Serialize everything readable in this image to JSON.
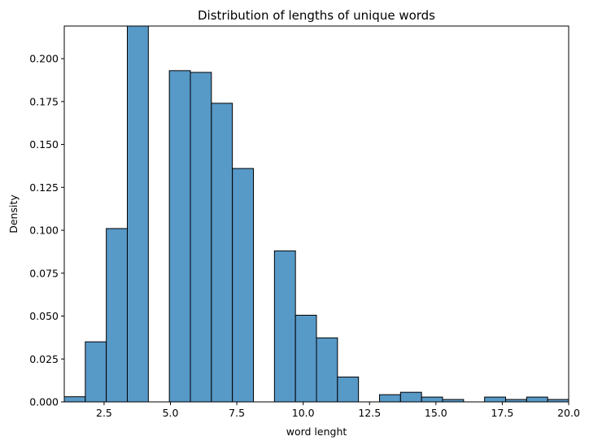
{
  "chart_data": {
    "type": "bar",
    "title": "Distribution of lengths of unique words",
    "xlabel": "word lenght",
    "ylabel": "Density",
    "xlim": [
      1,
      20
    ],
    "ylim": [
      0,
      0.219
    ],
    "grid": false,
    "legend": "none",
    "bar_color": "#5799c7",
    "edge_color": "#000000",
    "x_ticks": [
      2.5,
      5.0,
      7.5,
      10.0,
      12.5,
      15.0,
      17.5,
      20.0
    ],
    "x_tick_labels": [
      "2.5",
      "5.0",
      "7.5",
      "10.0",
      "12.5",
      "15.0",
      "17.5",
      "20.0"
    ],
    "y_ticks": [
      0.0,
      0.025,
      0.05,
      0.075,
      0.1,
      0.125,
      0.15,
      0.175,
      0.2
    ],
    "y_tick_labels": [
      "0.000",
      "0.025",
      "0.050",
      "0.075",
      "0.100",
      "0.125",
      "0.150",
      "0.175",
      "0.200"
    ],
    "bins": [
      {
        "x0": 1.0,
        "x1": 1.792,
        "value": 0.003
      },
      {
        "x0": 1.792,
        "x1": 2.583,
        "value": 0.035
      },
      {
        "x0": 2.583,
        "x1": 3.375,
        "value": 0.101
      },
      {
        "x0": 3.375,
        "x1": 4.167,
        "value": 0.219
      },
      {
        "x0": 4.167,
        "x1": 4.958,
        "value": 0.0
      },
      {
        "x0": 4.958,
        "x1": 5.75,
        "value": 0.193
      },
      {
        "x0": 5.75,
        "x1": 6.542,
        "value": 0.192
      },
      {
        "x0": 6.542,
        "x1": 7.333,
        "value": 0.174
      },
      {
        "x0": 7.333,
        "x1": 8.125,
        "value": 0.136
      },
      {
        "x0": 8.125,
        "x1": 8.917,
        "value": 0.0
      },
      {
        "x0": 8.917,
        "x1": 9.708,
        "value": 0.088
      },
      {
        "x0": 9.708,
        "x1": 10.5,
        "value": 0.0505
      },
      {
        "x0": 10.5,
        "x1": 11.292,
        "value": 0.0373
      },
      {
        "x0": 11.292,
        "x1": 12.083,
        "value": 0.0145
      },
      {
        "x0": 12.083,
        "x1": 12.875,
        "value": 0.0
      },
      {
        "x0": 12.875,
        "x1": 13.667,
        "value": 0.0042
      },
      {
        "x0": 13.667,
        "x1": 14.458,
        "value": 0.0056
      },
      {
        "x0": 14.458,
        "x1": 15.25,
        "value": 0.0028
      },
      {
        "x0": 15.25,
        "x1": 16.042,
        "value": 0.0014
      },
      {
        "x0": 16.042,
        "x1": 16.833,
        "value": 0.0
      },
      {
        "x0": 16.833,
        "x1": 17.625,
        "value": 0.0028
      },
      {
        "x0": 17.625,
        "x1": 18.417,
        "value": 0.0014
      },
      {
        "x0": 18.417,
        "x1": 19.208,
        "value": 0.0028
      },
      {
        "x0": 19.208,
        "x1": 20.0,
        "value": 0.0014
      }
    ]
  }
}
